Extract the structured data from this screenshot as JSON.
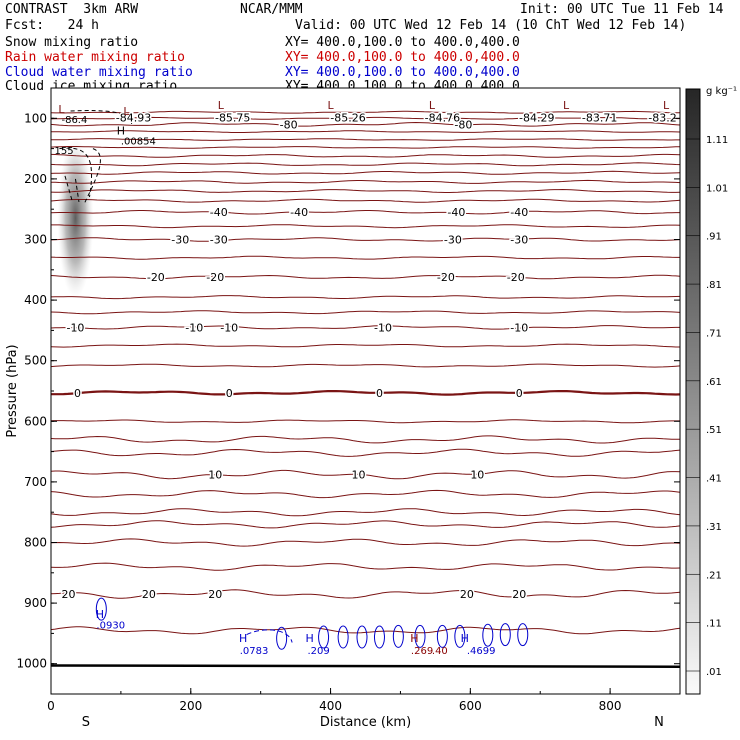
{
  "header": {
    "experiment": "CONTRAST  3km ARW",
    "forecast": "Fcst:   24 h",
    "center": "NCAR/MMM",
    "init": "Init: 00 UTC Tue 11 Feb 14",
    "valid": "Valid: 00 UTC Wed 12 Feb 14 (10 ChT Wed 12 Feb 14)"
  },
  "fields": [
    {
      "name": "Snow mixing ratio",
      "xy": "XY= 400.0,100.0 to 400.0,400.0",
      "color": "#000000"
    },
    {
      "name": "Rain water mixing ratio",
      "xy": "XY= 400.0,100.0 to 400.0,400.0",
      "color": "#cc0000"
    },
    {
      "name": "Cloud water mixing ratio",
      "xy": "XY= 400.0,100.0 to 400.0,400.0",
      "color": "#0000cc"
    },
    {
      "name": "Cloud ice mixing ratio",
      "xy": "XY= 400.0,100.0 to 400.0,400.0",
      "color": "#000000"
    }
  ],
  "chart_data": {
    "type": "cross-section contour",
    "xlabel": "Distance (km)",
    "ylabel": "Pressure (hPa)",
    "xlim": [
      0,
      900
    ],
    "ylim": [
      1050,
      50
    ],
    "x_ticks": [
      0,
      200,
      400,
      600,
      800
    ],
    "y_ticks": [
      100,
      200,
      300,
      400,
      500,
      600,
      700,
      800,
      900,
      1000
    ],
    "end_labels": {
      "left": "S",
      "right": "N"
    },
    "temperature_contours_c": [
      {
        "value": -80,
        "pressure": 110,
        "labels": [
          {
            "x": 340,
            "text": "-80"
          },
          {
            "x": 590,
            "text": "-80"
          }
        ]
      },
      {
        "value": -40,
        "pressure": 255,
        "labels": [
          {
            "x": 240,
            "text": "-40"
          },
          {
            "x": 355,
            "text": "-40"
          },
          {
            "x": 580,
            "text": "-40"
          },
          {
            "x": 670,
            "text": "-40"
          }
        ]
      },
      {
        "value": -30,
        "pressure": 300,
        "labels": [
          {
            "x": 185,
            "text": "-30"
          },
          {
            "x": 240,
            "text": "-30"
          },
          {
            "x": 575,
            "text": "-30"
          },
          {
            "x": 670,
            "text": "-30"
          }
        ]
      },
      {
        "value": -20,
        "pressure": 362,
        "labels": [
          {
            "x": 150,
            "text": "-20"
          },
          {
            "x": 235,
            "text": "-20"
          },
          {
            "x": 565,
            "text": "-20"
          },
          {
            "x": 665,
            "text": "-20"
          }
        ]
      },
      {
        "value": -10,
        "pressure": 445,
        "labels": [
          {
            "x": 35,
            "text": "-10"
          },
          {
            "x": 205,
            "text": "-10"
          },
          {
            "x": 255,
            "text": "-10"
          },
          {
            "x": 475,
            "text": "-10"
          },
          {
            "x": 670,
            "text": "-10"
          }
        ]
      },
      {
        "value": 0,
        "pressure": 553,
        "labels": [
          {
            "x": 38,
            "text": "0"
          },
          {
            "x": 255,
            "text": "0"
          },
          {
            "x": 470,
            "text": "0"
          },
          {
            "x": 670,
            "text": "0"
          }
        ]
      },
      {
        "value": 10,
        "pressure": 688,
        "labels": [
          {
            "x": 235,
            "text": "10"
          },
          {
            "x": 440,
            "text": "10"
          },
          {
            "x": 610,
            "text": "10"
          }
        ]
      },
      {
        "value": 20,
        "pressure": 885,
        "labels": [
          {
            "x": 25,
            "text": "20"
          },
          {
            "x": 140,
            "text": "20"
          },
          {
            "x": 235,
            "text": "20"
          },
          {
            "x": 595,
            "text": "20"
          },
          {
            "x": 670,
            "text": "20"
          }
        ]
      }
    ],
    "top_temperature_labels": [
      {
        "x": 260,
        "text": "-85.75"
      },
      {
        "x": 425,
        "text": "-85.26"
      },
      {
        "x": 560,
        "text": "-84.76"
      },
      {
        "x": 695,
        "text": "-84.29"
      },
      {
        "x": 785,
        "text": "-83.71"
      },
      {
        "x": 875,
        "text": "-83.2"
      },
      {
        "x": 118,
        "text": "-84.93"
      }
    ],
    "highs_lows": [
      {
        "x": 15,
        "p": 85,
        "text": "L"
      },
      {
        "x": 108,
        "p": 88,
        "text": "L"
      },
      {
        "x": 243,
        "p": 78,
        "text": "L"
      },
      {
        "x": 400,
        "p": 78,
        "text": "L"
      },
      {
        "x": 545,
        "p": 78,
        "text": "L"
      },
      {
        "x": 737,
        "p": 78,
        "text": "L"
      },
      {
        "x": 880,
        "p": 78,
        "text": "L"
      },
      {
        "x": 100,
        "p": 120,
        "text": "H"
      },
      {
        "x": 70,
        "p": 918,
        "text": "H"
      },
      {
        "x": 275,
        "p": 958,
        "text": "H"
      },
      {
        "x": 370,
        "p": 958,
        "text": "H"
      },
      {
        "x": 520,
        "p": 958,
        "text": "H"
      },
      {
        "x": 592,
        "p": 958,
        "text": "H"
      }
    ],
    "annotations": [
      {
        "x": 15,
        "p": 101,
        "text": "-86.4"
      },
      {
        "x": 100,
        "p": 137,
        "text": ".00854"
      },
      {
        "x": 5,
        "p": 152,
        "text": "155"
      },
      {
        "x": 65,
        "p": 935,
        "text": ".0930"
      },
      {
        "x": 270,
        "p": 977,
        "text": ".0783"
      },
      {
        "x": 367,
        "p": 977,
        "text": ".209"
      },
      {
        "x": 515,
        "p": 977,
        "text": ".269"
      },
      {
        "x": 545,
        "p": 977,
        "text": ".40"
      },
      {
        "x": 595,
        "p": 977,
        "text": ".4699"
      }
    ],
    "colorbar": {
      "unit": "g kg⁻¹",
      "tick_labels": [
        "1.11",
        "1.01",
        ".91",
        ".81",
        ".71",
        ".61",
        ".51",
        ".41",
        ".31",
        ".21",
        ".11",
        ".01"
      ]
    }
  }
}
